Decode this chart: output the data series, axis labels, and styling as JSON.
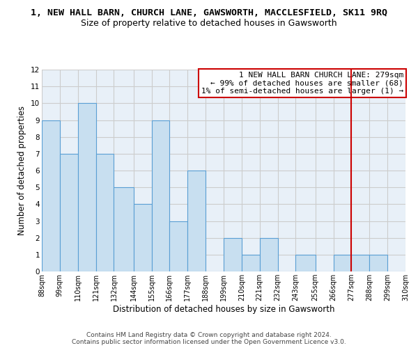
{
  "title": "1, NEW HALL BARN, CHURCH LANE, GAWSWORTH, MACCLESFIELD, SK11 9RQ",
  "subtitle": "Size of property relative to detached houses in Gawsworth",
  "xlabel": "Distribution of detached houses by size in Gawsworth",
  "ylabel": "Number of detached properties",
  "bar_color": "#c8dff0",
  "bar_edge_color": "#5a9fd4",
  "grid_color": "#cccccc",
  "bin_edges": [
    88,
    99,
    110,
    121,
    132,
    144,
    155,
    166,
    177,
    188,
    199,
    210,
    221,
    232,
    243,
    255,
    266,
    277,
    288,
    299,
    310
  ],
  "bar_heights": [
    9,
    7,
    10,
    7,
    5,
    4,
    9,
    3,
    6,
    0,
    2,
    1,
    2,
    0,
    1,
    0,
    1,
    1,
    1,
    0
  ],
  "ylim": [
    0,
    12
  ],
  "yticks": [
    0,
    1,
    2,
    3,
    4,
    5,
    6,
    7,
    8,
    9,
    10,
    11,
    12
  ],
  "vline_x": 277,
  "vline_color": "#cc0000",
  "annotation_box_text": "1 NEW HALL BARN CHURCH LANE: 279sqm\n← 99% of detached houses are smaller (68)\n1% of semi-detached houses are larger (1) →",
  "annotation_box_color": "#cc0000",
  "annotation_box_fill": "#ffffff",
  "footnote1": "Contains HM Land Registry data © Crown copyright and database right 2024.",
  "footnote2": "Contains public sector information licensed under the Open Government Licence v3.0.",
  "title_fontsize": 9.5,
  "subtitle_fontsize": 9,
  "tick_label_fontsize": 7,
  "axis_label_fontsize": 8.5,
  "annotation_fontsize": 8,
  "footnote_fontsize": 6.5,
  "background_color": "#e8f0f8"
}
